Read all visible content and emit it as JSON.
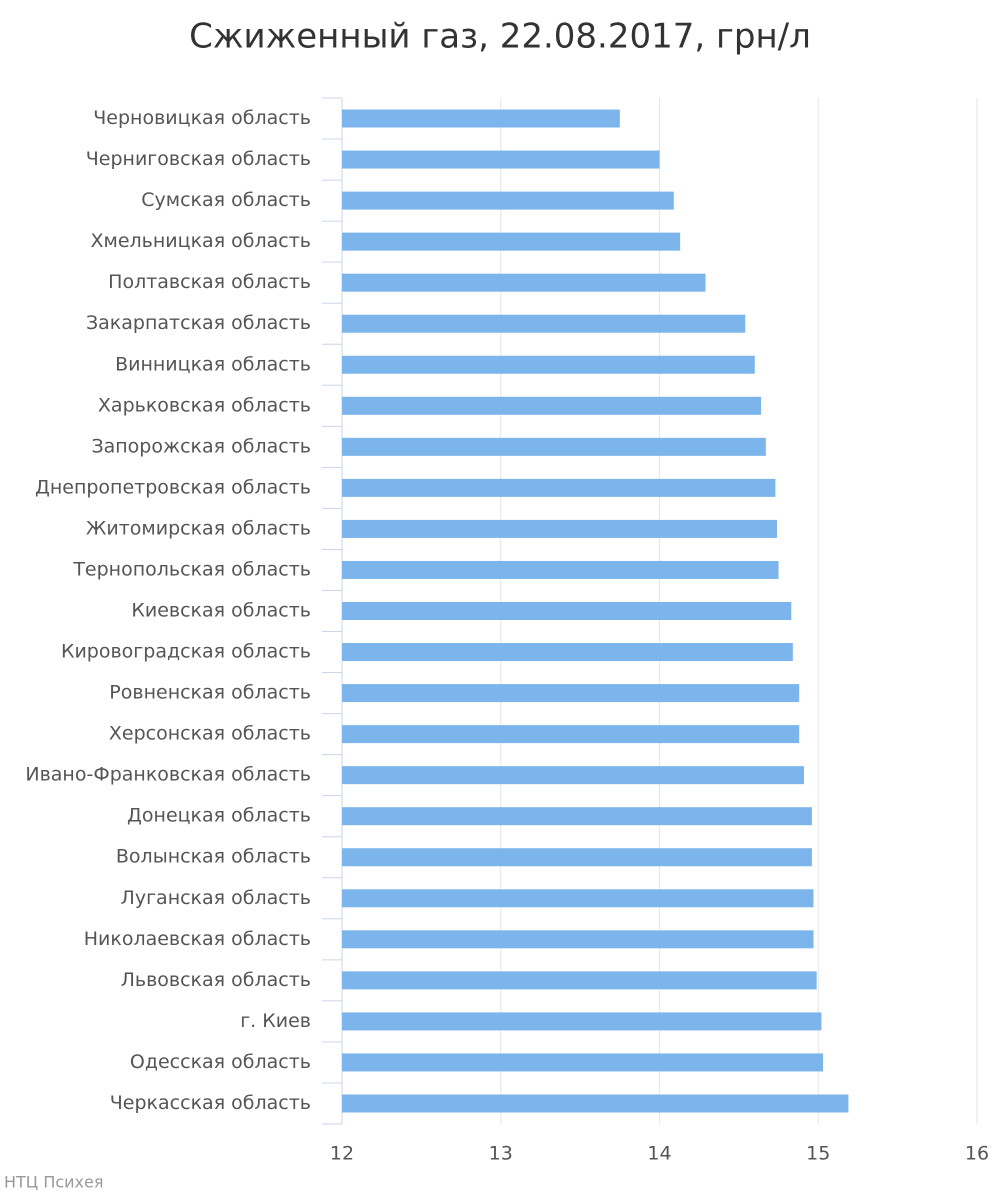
{
  "chart_data": {
    "type": "bar",
    "orientation": "horizontal",
    "title": "Сжиженный газ, 22.08.2017, грн/л",
    "source": "НТЦ Психея",
    "categories": [
      "Черновицкая область",
      "Черниговская область",
      "Сумская область",
      "Хмельницкая область",
      "Полтавская область",
      "Закарпатская область",
      "Винницкая область",
      "Харьковская область",
      "Запорожская область",
      "Днепропетровская область",
      "Житомирская область",
      "Тернопольская область",
      "Киевская область",
      "Кировоградская область",
      "Ровненская область",
      "Херсонская область",
      "Ивано-Франковская область",
      "Донецкая область",
      "Волынская область",
      "Луганская область",
      "Николаевская область",
      "Львовская область",
      "г. Киев",
      "Одесская область",
      "Черкасская область"
    ],
    "values": [
      13.75,
      14.0,
      14.09,
      14.13,
      14.29,
      14.54,
      14.6,
      14.64,
      14.67,
      14.73,
      14.74,
      14.75,
      14.83,
      14.84,
      14.88,
      14.88,
      14.91,
      14.96,
      14.96,
      14.97,
      14.97,
      14.99,
      15.02,
      15.03,
      15.19
    ],
    "color": "#7cb5ec",
    "xlim": [
      12,
      16
    ],
    "xticks": [
      12,
      13,
      14,
      15,
      16
    ],
    "grid": true
  }
}
